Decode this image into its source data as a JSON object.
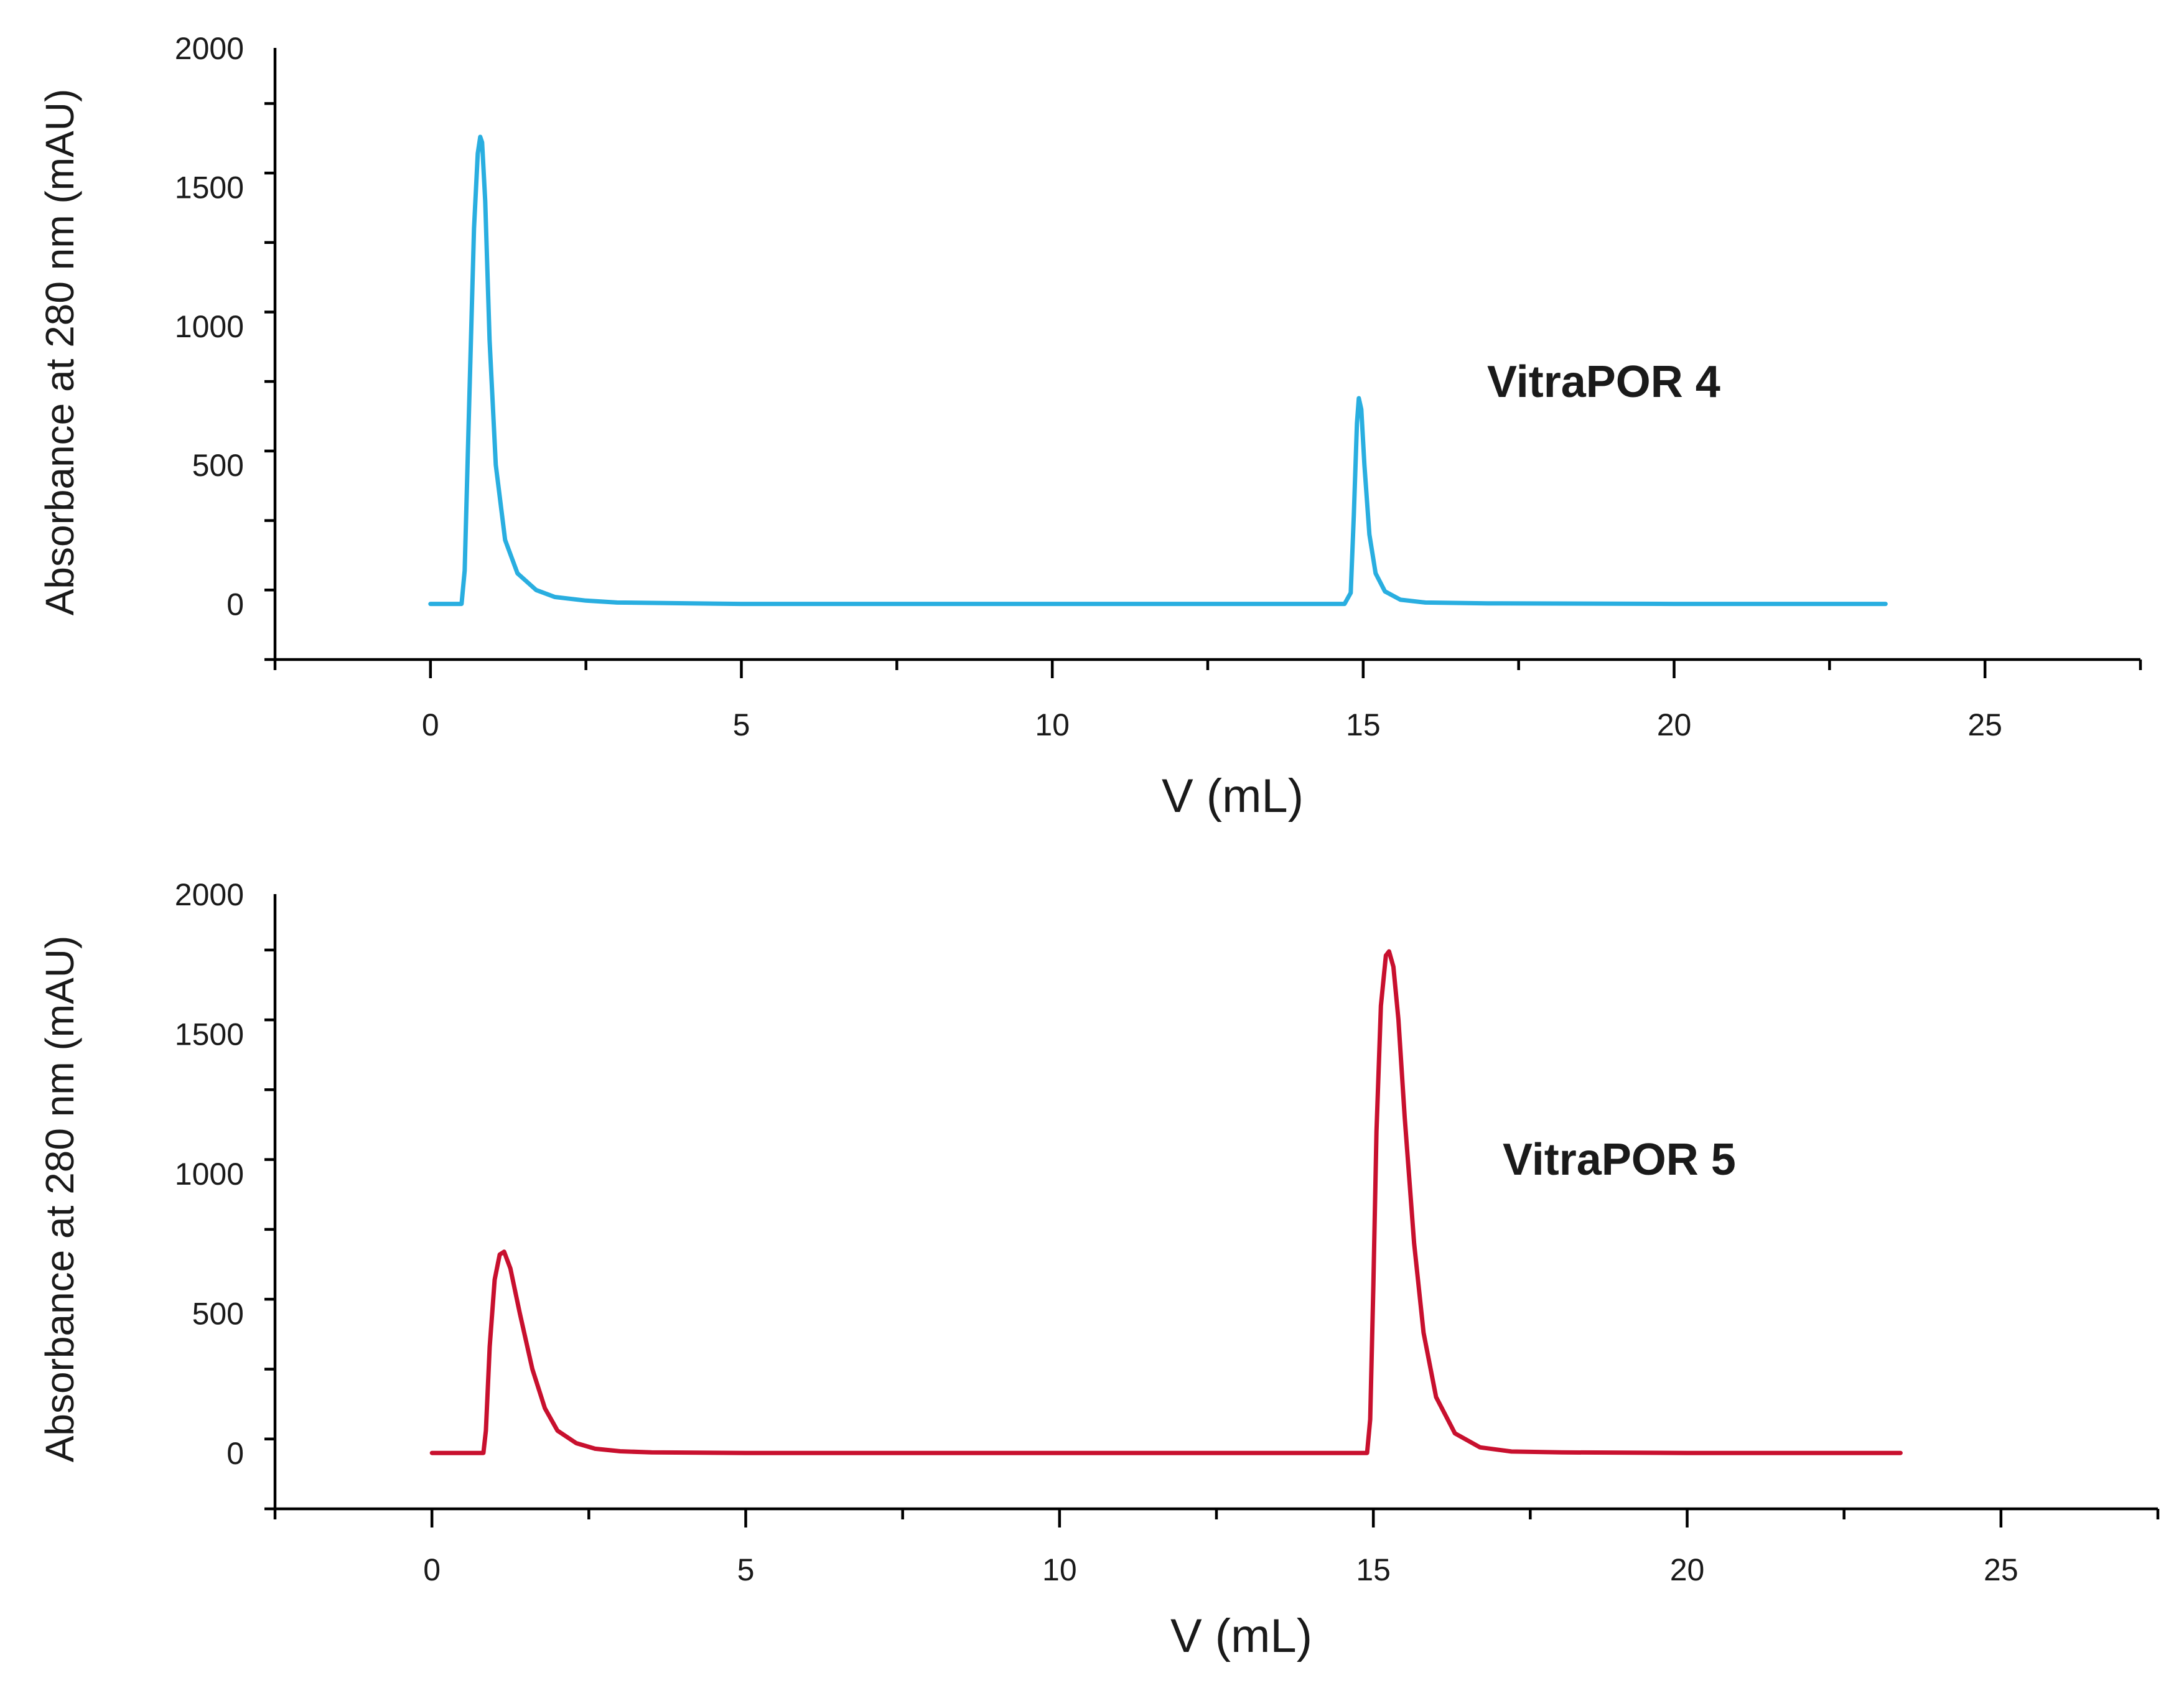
{
  "chart_data": [
    {
      "type": "line",
      "title": "",
      "annotation": "VitraPOR 4",
      "xlabel": "V (mL)",
      "ylabel": "Absorbance at 280 nm (mAU)",
      "xlim": [
        -2.5,
        27.5
      ],
      "ylim": [
        -200,
        2000
      ],
      "xticks": [
        0,
        5,
        10,
        15,
        20,
        25
      ],
      "xtick_labels": [
        "0",
        "5",
        "10",
        "15",
        "20",
        "25"
      ],
      "yticks": [
        0,
        500,
        1000,
        1500,
        2000
      ],
      "ytick_labels": [
        "0",
        "500",
        "1000",
        "1500",
        "2000"
      ],
      "grid": false,
      "series": [
        {
          "name": "VitraPOR 4",
          "color": "#29aee0",
          "x": [
            0,
            0.5,
            0.55,
            0.62,
            0.7,
            0.76,
            0.8,
            0.83,
            0.88,
            0.95,
            1.05,
            1.2,
            1.4,
            1.7,
            2.0,
            2.5,
            3.0,
            5,
            10,
            14.7,
            14.8,
            14.85,
            14.9,
            14.93,
            14.97,
            15.02,
            15.1,
            15.2,
            15.35,
            15.6,
            16.0,
            17,
            20,
            23.4
          ],
          "y": [
            0,
            0,
            120,
            700,
            1350,
            1620,
            1680,
            1660,
            1450,
            950,
            500,
            230,
            110,
            50,
            25,
            12,
            5,
            0,
            0,
            0,
            40,
            320,
            650,
            740,
            700,
            500,
            250,
            110,
            45,
            15,
            5,
            2,
            0,
            0
          ]
        }
      ]
    },
    {
      "type": "line",
      "title": "",
      "annotation": "VitraPOR 5",
      "xlabel": "V (mL)",
      "ylabel": "Absorbance at 280 nm (mAU)",
      "xlim": [
        -2.5,
        27.5
      ],
      "ylim": [
        -200,
        2000
      ],
      "xticks": [
        0,
        5,
        10,
        15,
        20,
        25
      ],
      "xtick_labels": [
        "0",
        "5",
        "10",
        "15",
        "20",
        "25"
      ],
      "yticks": [
        0,
        500,
        1000,
        1500,
        2000
      ],
      "ytick_labels": [
        "0",
        "500",
        "1000",
        "1500",
        "2000"
      ],
      "grid": false,
      "series": [
        {
          "name": "VitraPOR 5",
          "color": "#c8102e",
          "x": [
            0,
            0.82,
            0.86,
            0.92,
            1.0,
            1.08,
            1.15,
            1.25,
            1.4,
            1.6,
            1.8,
            2.0,
            2.3,
            2.6,
            3.0,
            3.5,
            5,
            10,
            14.9,
            14.95,
            15.0,
            15.05,
            15.12,
            15.2,
            15.25,
            15.32,
            15.4,
            15.5,
            15.65,
            15.8,
            16.0,
            16.3,
            16.7,
            17.2,
            18,
            20,
            23.4
          ],
          "y": [
            0,
            0,
            80,
            380,
            620,
            710,
            720,
            660,
            500,
            300,
            160,
            80,
            35,
            15,
            6,
            2,
            0,
            0,
            0,
            120,
            600,
            1150,
            1600,
            1780,
            1795,
            1740,
            1550,
            1200,
            750,
            430,
            200,
            70,
            20,
            5,
            2,
            0,
            0
          ]
        }
      ]
    }
  ]
}
